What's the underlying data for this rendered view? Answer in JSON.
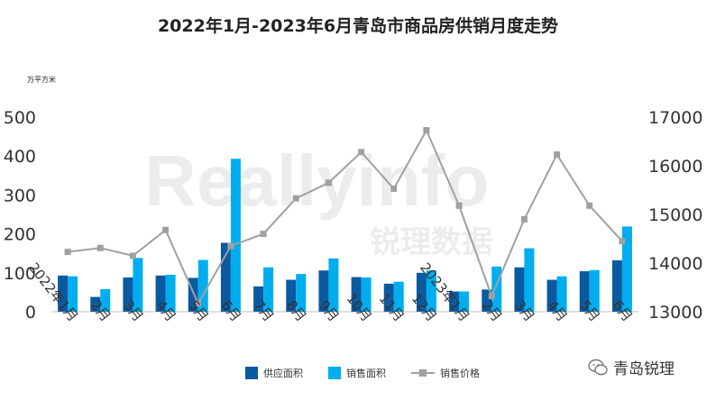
{
  "title": "2022年1月-2023年6月青岛市商品房供销月度走势",
  "unit_label": "万平方米",
  "brand": {
    "name": "青岛锐理",
    "icon": "wechat-icon"
  },
  "watermark": {
    "text_en": "Reallyinfo",
    "text_cn": "锐理数据"
  },
  "colors": {
    "supply": "#0a5aa0",
    "sales": "#00aeef",
    "price": "#a0a0a0",
    "axis_text": "#333333"
  },
  "chart_data": {
    "type": "bar",
    "title": "2022年1月-2023年6月青岛市商品房供销月度走势",
    "categories": [
      "2022年1月",
      "2月",
      "3月",
      "4月",
      "5月",
      "6月",
      "7月",
      "8月",
      "9月",
      "10月",
      "11月",
      "12月",
      "2023年1月",
      "2月",
      "3月",
      "4月",
      "5月",
      "6月"
    ],
    "series": [
      {
        "name": "供应面积",
        "type": "bar",
        "axis": "left",
        "values": [
          93,
          38,
          88,
          93,
          87,
          177,
          65,
          82,
          106,
          89,
          72,
          100,
          52,
          57,
          114,
          82,
          104,
          132
        ]
      },
      {
        "name": "销售面积",
        "type": "bar",
        "axis": "left",
        "values": [
          91,
          58,
          138,
          95,
          133,
          393,
          114,
          97,
          137,
          88,
          77,
          106,
          52,
          116,
          163,
          91,
          107,
          219
        ]
      },
      {
        "name": "销售价格",
        "type": "line",
        "axis": "right",
        "values": [
          14230,
          14310,
          14150,
          14680,
          13170,
          14350,
          14600,
          15330,
          15650,
          16280,
          15530,
          16730,
          15180,
          13320,
          14900,
          16230,
          15180,
          14450
        ]
      }
    ],
    "ylim_left": [
      0,
      500
    ],
    "yticks_left": [
      "0",
      "100",
      "200",
      "300",
      "400",
      "500"
    ],
    "ylim_right": [
      13000,
      17000
    ],
    "yticks_right": [
      "13000",
      "14000",
      "15000",
      "16000",
      "17000"
    ],
    "ylabel_left": "万平方米",
    "legend_position": "bottom",
    "grid": false
  }
}
